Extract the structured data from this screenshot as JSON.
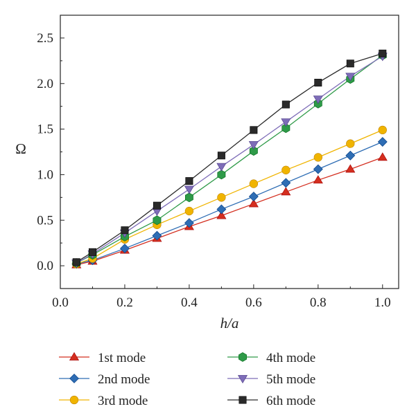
{
  "chart_data": {
    "type": "line",
    "xlabel": "h/a",
    "ylabel": "Ω",
    "xlim": [
      0.0,
      1.05
    ],
    "ylim": [
      -0.25,
      2.75
    ],
    "xticks": [
      "0.0",
      "0.2",
      "0.4",
      "0.6",
      "0.8",
      "1.0"
    ],
    "yticks": [
      "0.0",
      "0.5",
      "1.0",
      "1.5",
      "2.0",
      "2.5"
    ],
    "grid": false,
    "legend_position": "bottom",
    "x": [
      0.05,
      0.1,
      0.2,
      0.3,
      0.4,
      0.5,
      0.6,
      0.7,
      0.8,
      0.9,
      1.0
    ],
    "series": [
      {
        "name": "1st mode",
        "marker": "triangle-up",
        "color": "#d42e1f",
        "values": [
          0.01,
          0.05,
          0.17,
          0.3,
          0.43,
          0.55,
          0.68,
          0.81,
          0.94,
          1.06,
          1.19
        ]
      },
      {
        "name": "2nd mode",
        "marker": "diamond",
        "color": "#2e6db4",
        "values": [
          0.02,
          0.06,
          0.19,
          0.33,
          0.47,
          0.62,
          0.76,
          0.91,
          1.06,
          1.21,
          1.36
        ]
      },
      {
        "name": "3rd mode",
        "marker": "circle",
        "color": "#f0b400",
        "values": [
          0.02,
          0.08,
          0.29,
          0.45,
          0.6,
          0.75,
          0.9,
          1.05,
          1.19,
          1.34,
          1.49
        ]
      },
      {
        "name": "4th mode",
        "marker": "hexagon",
        "color": "#2e9a48",
        "values": [
          0.03,
          0.12,
          0.32,
          0.5,
          0.75,
          1.0,
          1.26,
          1.51,
          1.78,
          2.05,
          2.31
        ]
      },
      {
        "name": "5th mode",
        "marker": "triangle-down",
        "color": "#7e6db8",
        "values": [
          0.03,
          0.13,
          0.36,
          0.6,
          0.84,
          1.09,
          1.33,
          1.58,
          1.83,
          2.08,
          2.3
        ]
      },
      {
        "name": "6th mode",
        "marker": "square",
        "color": "#2a2a2a",
        "values": [
          0.04,
          0.15,
          0.39,
          0.66,
          0.93,
          1.21,
          1.49,
          1.77,
          2.01,
          2.22,
          2.33
        ]
      }
    ]
  }
}
